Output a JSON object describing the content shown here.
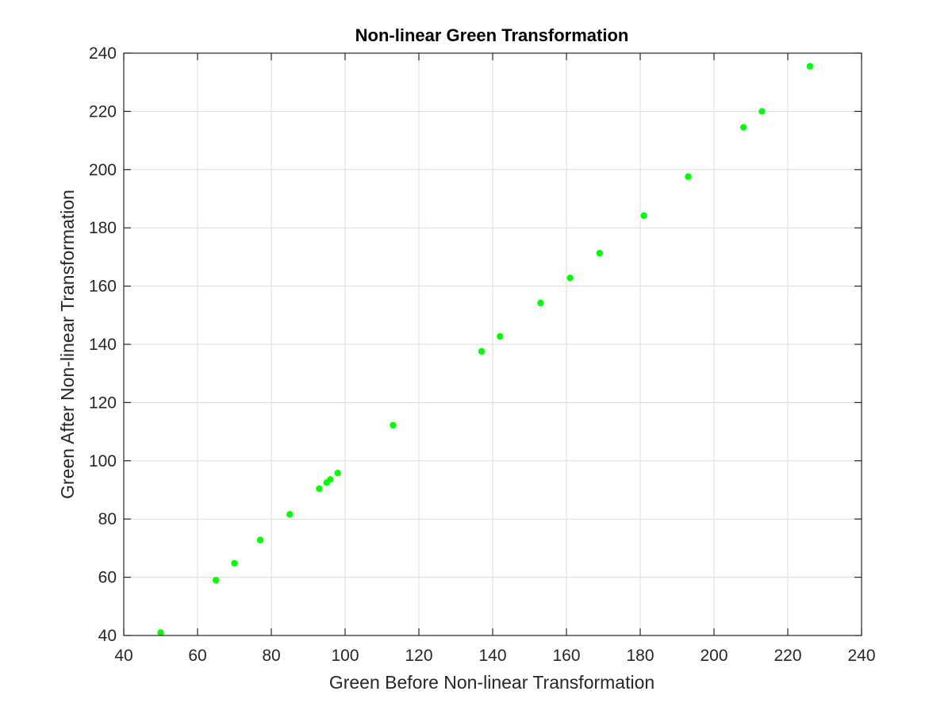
{
  "chart_data": {
    "type": "scatter",
    "title": "Non-linear Green Transformation",
    "xlabel": "Green Before Non-linear Transformation",
    "ylabel": "Green After Non-linear Transformation",
    "xlim": [
      40,
      240
    ],
    "ylim": [
      40,
      240
    ],
    "xticks": [
      40,
      60,
      80,
      100,
      120,
      140,
      160,
      180,
      200,
      220,
      240
    ],
    "yticks": [
      40,
      60,
      80,
      100,
      120,
      140,
      160,
      180,
      200,
      220,
      240
    ],
    "grid": true,
    "marker_color": "#00ff00",
    "series": [
      {
        "points": [
          [
            50,
            41
          ],
          [
            65,
            59
          ],
          [
            70,
            64.8
          ],
          [
            77,
            72.8
          ],
          [
            85,
            81.6
          ],
          [
            93,
            90.4
          ],
          [
            95,
            92.5
          ],
          [
            96,
            93.6
          ],
          [
            98,
            95.8
          ],
          [
            113,
            112.2
          ],
          [
            137,
            137.6
          ],
          [
            142,
            142.7
          ],
          [
            153,
            154.2
          ],
          [
            161,
            162.8
          ],
          [
            169,
            171.3
          ],
          [
            181,
            184.2
          ],
          [
            193,
            197.6
          ],
          [
            208,
            214.5
          ],
          [
            213,
            220
          ],
          [
            226,
            235.5
          ]
        ]
      }
    ]
  }
}
